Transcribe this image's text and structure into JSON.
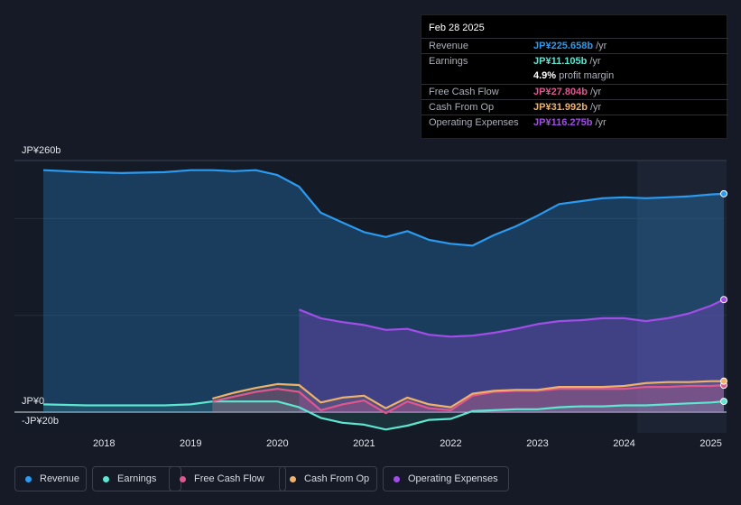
{
  "tooltip": {
    "date": "Feb 28 2025",
    "rows": [
      {
        "label": "Revenue",
        "value": "JP¥225.658b",
        "unit": "/yr",
        "color": "#2a9bf0"
      },
      {
        "label": "Earnings",
        "value": "JP¥11.105b",
        "unit": "/yr",
        "color": "#5ee6d1"
      },
      {
        "label": "",
        "value": "4.9%",
        "unit": "profit margin",
        "color": "#ffffff"
      },
      {
        "label": "Free Cash Flow",
        "value": "JP¥27.804b",
        "unit": "/yr",
        "color": "#e0568f"
      },
      {
        "label": "Cash From Op",
        "value": "JP¥31.992b",
        "unit": "/yr",
        "color": "#efb26a"
      },
      {
        "label": "Operating Expenses",
        "value": "JP¥116.275b",
        "unit": "/yr",
        "color": "#a24de8"
      }
    ]
  },
  "legend": [
    {
      "label": "Revenue",
      "color": "#2a9bf0"
    },
    {
      "label": "Earnings",
      "color": "#5ee6d1"
    },
    {
      "label": "Free Cash Flow",
      "color": "#e0568f"
    },
    {
      "label": "Cash From Op",
      "color": "#efb26a"
    },
    {
      "label": "Operating Expenses",
      "color": "#a24de8"
    }
  ],
  "chart_data": {
    "type": "area",
    "y_tick_labels": [
      "JP¥260b",
      "JP¥0",
      "-JP¥20b"
    ],
    "ylim": [
      -20,
      260
    ],
    "x_tick_labels": [
      "2018",
      "2019",
      "2020",
      "2021",
      "2022",
      "2023",
      "2024",
      "2025"
    ],
    "xlim": [
      2017.3,
      2025.15
    ],
    "highlight_from": 2024.15,
    "series": [
      {
        "name": "Revenue",
        "color": "#2a9bf0",
        "x": [
          2017.3,
          2017.8,
          2018.2,
          2018.7,
          2019.0,
          2019.25,
          2019.5,
          2019.75,
          2020.0,
          2020.25,
          2020.5,
          2020.75,
          2021.0,
          2021.25,
          2021.5,
          2021.75,
          2022.0,
          2022.25,
          2022.5,
          2022.75,
          2023.0,
          2023.25,
          2023.5,
          2023.75,
          2024.0,
          2024.25,
          2024.5,
          2024.75,
          2025.0,
          2025.15
        ],
        "values": [
          250,
          248,
          247,
          248,
          250,
          250,
          249,
          250,
          245,
          233,
          206,
          196,
          186,
          181,
          187,
          178,
          174,
          172,
          183,
          192,
          203,
          215,
          218,
          221,
          222,
          221,
          222,
          223,
          225,
          225.658
        ]
      },
      {
        "name": "Earnings",
        "color": "#5ee6d1",
        "x": [
          2017.3,
          2017.8,
          2018.2,
          2018.7,
          2019.0,
          2019.25,
          2019.5,
          2019.75,
          2020.0,
          2020.25,
          2020.5,
          2020.75,
          2021.0,
          2021.25,
          2021.5,
          2021.75,
          2022.0,
          2022.25,
          2022.5,
          2022.75,
          2023.0,
          2023.25,
          2023.5,
          2023.75,
          2024.0,
          2024.25,
          2024.5,
          2024.75,
          2025.0,
          2025.15
        ],
        "values": [
          8,
          7,
          7,
          7,
          8,
          11,
          11,
          11,
          11,
          5,
          -6,
          -11,
          -13,
          -18,
          -14,
          -8,
          -7,
          1,
          2,
          3,
          3,
          5,
          6,
          6,
          7,
          7,
          8,
          9,
          10,
          11.105
        ]
      },
      {
        "name": "Free Cash Flow",
        "color": "#e0568f",
        "x": [
          2019.25,
          2019.5,
          2019.75,
          2020.0,
          2020.25,
          2020.5,
          2020.75,
          2021.0,
          2021.25,
          2021.5,
          2021.75,
          2022.0,
          2022.25,
          2022.5,
          2022.75,
          2023.0,
          2023.25,
          2023.5,
          2023.75,
          2024.0,
          2024.25,
          2024.5,
          2024.75,
          2025.0,
          2025.15
        ],
        "values": [
          11,
          16,
          21,
          24,
          21,
          2,
          8,
          12,
          -1,
          11,
          4,
          2,
          17,
          21,
          22,
          22,
          24,
          24,
          24,
          24,
          26,
          26,
          27,
          27,
          27.804
        ]
      },
      {
        "name": "Cash From Op",
        "color": "#efb26a",
        "x": [
          2019.25,
          2019.5,
          2019.75,
          2020.0,
          2020.25,
          2020.5,
          2020.75,
          2021.0,
          2021.25,
          2021.5,
          2021.75,
          2022.0,
          2022.25,
          2022.5,
          2022.75,
          2023.0,
          2023.25,
          2023.5,
          2023.75,
          2024.0,
          2024.25,
          2024.5,
          2024.75,
          2025.0,
          2025.15
        ],
        "values": [
          14,
          20,
          25,
          29,
          28,
          10,
          15,
          17,
          4,
          15,
          8,
          5,
          19,
          22,
          23,
          23,
          26,
          26,
          26,
          27,
          30,
          31,
          31,
          32,
          31.992
        ]
      },
      {
        "name": "Operating Expenses",
        "color": "#a24de8",
        "x": [
          2020.25,
          2020.5,
          2020.75,
          2021.0,
          2021.25,
          2021.5,
          2021.75,
          2022.0,
          2022.25,
          2022.5,
          2022.75,
          2023.0,
          2023.25,
          2023.5,
          2023.75,
          2024.0,
          2024.25,
          2024.5,
          2024.75,
          2025.0,
          2025.15
        ],
        "values": [
          106,
          97,
          93,
          90,
          85,
          86,
          80,
          78,
          79,
          82,
          86,
          91,
          94,
          95,
          97,
          97,
          94,
          97,
          102,
          110,
          116.275
        ]
      }
    ]
  }
}
